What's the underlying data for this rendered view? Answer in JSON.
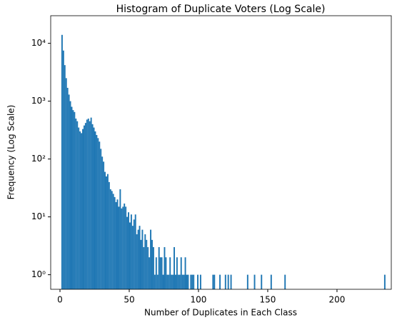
{
  "chart_data": {
    "type": "histogram",
    "title": "Histogram of Duplicate Voters (Log Scale)",
    "x_label": "Number of Duplicates in Each Class",
    "y_label": "Frequency (Log Scale)",
    "color": "#1f77b4",
    "y_scale": "log",
    "bins": [
      1,
      2,
      3,
      4,
      5,
      6,
      7,
      8,
      9,
      10,
      11,
      12,
      13,
      14,
      15,
      16,
      17,
      18,
      19,
      20,
      21,
      22,
      23,
      24,
      25,
      26,
      27,
      28,
      29,
      30,
      31,
      32,
      33,
      34,
      35,
      36,
      37,
      38,
      39,
      40,
      41,
      42,
      43,
      44,
      45,
      46,
      47,
      48,
      49,
      50,
      51,
      52,
      53,
      54,
      55,
      56,
      57,
      58,
      59,
      60,
      61,
      62,
      63,
      64,
      65,
      66,
      67,
      68,
      69,
      70,
      71,
      72,
      73,
      74,
      75,
      76,
      77,
      78,
      79,
      80,
      81,
      82,
      83,
      84,
      85,
      86,
      87,
      88,
      89,
      90,
      91,
      92,
      93,
      94,
      95,
      96,
      97,
      98,
      99,
      100,
      101,
      102,
      103,
      104,
      105,
      106,
      107,
      108,
      109,
      110,
      111,
      112,
      113,
      114,
      115,
      116,
      117,
      118,
      119,
      120,
      121,
      122,
      123,
      124,
      125,
      126,
      127,
      128,
      129,
      130,
      131,
      132,
      133,
      134,
      135,
      136,
      137,
      138,
      139,
      140,
      141,
      142,
      143,
      144,
      145,
      146,
      147,
      148,
      149,
      150,
      151,
      152,
      153,
      154,
      155,
      156,
      157,
      158,
      159,
      160,
      161,
      162,
      163,
      164,
      165,
      166,
      167,
      168,
      169,
      170,
      171,
      172,
      173,
      174,
      175,
      176,
      177,
      178,
      179,
      180,
      181,
      182,
      183,
      184,
      185,
      186,
      187,
      188,
      189,
      190,
      191,
      192,
      193,
      194,
      195,
      196,
      197,
      198,
      199,
      200,
      201,
      202,
      203,
      204,
      205,
      206,
      207,
      208,
      209,
      210,
      211,
      212,
      213,
      214,
      215,
      216,
      217,
      218,
      219,
      220,
      221,
      222,
      223,
      224,
      225,
      226,
      227,
      228,
      229,
      230,
      231,
      232,
      233,
      234,
      235
    ],
    "counts": [
      14000,
      7500,
      4200,
      2500,
      1700,
      1300,
      1000,
      800,
      700,
      650,
      500,
      450,
      350,
      300,
      280,
      330,
      380,
      420,
      480,
      500,
      450,
      520,
      400,
      350,
      300,
      260,
      230,
      200,
      150,
      110,
      90,
      60,
      50,
      55,
      40,
      30,
      28,
      25,
      22,
      18,
      20,
      15,
      30,
      14,
      15,
      17,
      15,
      10,
      12,
      8,
      11,
      7,
      9,
      11,
      5,
      6,
      7,
      4,
      6,
      3,
      5,
      4,
      3,
      2,
      6,
      4,
      3,
      1,
      2,
      1,
      3,
      2,
      2,
      1,
      3,
      2,
      1,
      1,
      2,
      1,
      1,
      3,
      1,
      2,
      1,
      1,
      2,
      1,
      1,
      2,
      1,
      1,
      0,
      1,
      1,
      1,
      0,
      0,
      1,
      0,
      1,
      0,
      0,
      0,
      0,
      0,
      0,
      0,
      0,
      1,
      1,
      0,
      0,
      0,
      1,
      0,
      0,
      0,
      1,
      0,
      1,
      0,
      1,
      0,
      0,
      0,
      0,
      0,
      0,
      0,
      0,
      0,
      0,
      0,
      1,
      0,
      0,
      0,
      0,
      1,
      0,
      0,
      0,
      0,
      1,
      0,
      0,
      0,
      0,
      0,
      0,
      1,
      0,
      0,
      0,
      0,
      0,
      0,
      0,
      0,
      0,
      1,
      0,
      0,
      0,
      0,
      0,
      0,
      0,
      0,
      0,
      0,
      0,
      0,
      0,
      0,
      0,
      0,
      0,
      0,
      0,
      0,
      0,
      0,
      0,
      0,
      0,
      0,
      0,
      0,
      0,
      0,
      0,
      0,
      0,
      0,
      0,
      0,
      0,
      0,
      0,
      0,
      0,
      0,
      0,
      0,
      0,
      0,
      0,
      0,
      0,
      0,
      0,
      0,
      0,
      0,
      0,
      0,
      0,
      0,
      0,
      0,
      0,
      0,
      0,
      0,
      0,
      0,
      0,
      0,
      0,
      0,
      0,
      1
    ],
    "xlim": [
      -6.7,
      239.2
    ],
    "ylim": [
      0.56,
      30000
    ],
    "xticks": [
      0,
      50,
      100,
      150,
      200
    ],
    "yticks": [
      {
        "value": 1,
        "label": "10⁰"
      },
      {
        "value": 10,
        "label": "10¹"
      },
      {
        "value": 100,
        "label": "10²"
      },
      {
        "value": 1000,
        "label": "10³"
      },
      {
        "value": 10000,
        "label": "10⁴"
      }
    ]
  }
}
